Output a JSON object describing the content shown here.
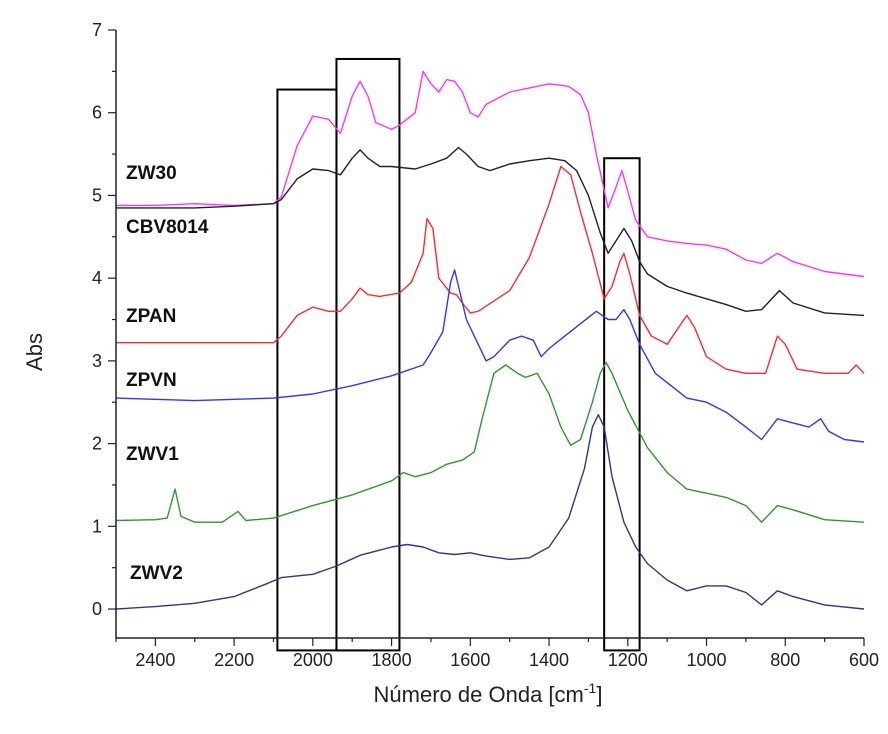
{
  "chart_data": {
    "type": "line",
    "xlabel": "Número de Onda [cm",
    "xlabel_superscript": "-1",
    "xlabel_suffix": "]",
    "ylabel": "Abs",
    "xlim": [
      2500,
      600
    ],
    "ylim": [
      -0.35,
      7
    ],
    "x_reversed": true,
    "x_ticks": [
      2400,
      2200,
      2000,
      1800,
      1600,
      1400,
      1200,
      1000,
      800,
      600
    ],
    "y_ticks": [
      0,
      1,
      2,
      3,
      4,
      5,
      6,
      7
    ],
    "x_tick_labels": [
      "2400",
      "2200",
      "2000",
      "1800",
      "1600",
      "1400",
      "1200",
      "1000",
      "800",
      "600"
    ],
    "y_tick_labels": [
      "0",
      "1",
      "2",
      "3",
      "4",
      "5",
      "6",
      "7"
    ],
    "grid": false,
    "legend": "none",
    "highlight_boxes": [
      {
        "x": [
          2090,
          1940
        ],
        "y": [
          -0.5,
          6.28
        ]
      },
      {
        "x": [
          1940,
          1780
        ],
        "y": [
          -0.5,
          6.65
        ]
      },
      {
        "x": [
          1260,
          1170
        ],
        "y": [
          -0.5,
          5.45
        ]
      }
    ],
    "series": [
      {
        "name": "ZW30",
        "color": "#ff33ff",
        "points": [
          [
            2500,
            4.88
          ],
          [
            2400,
            4.88
          ],
          [
            2300,
            4.9
          ],
          [
            2200,
            4.88
          ],
          [
            2100,
            4.9
          ],
          [
            2080,
            4.98
          ],
          [
            2040,
            5.6
          ],
          [
            2000,
            5.96
          ],
          [
            1960,
            5.92
          ],
          [
            1930,
            5.75
          ],
          [
            1900,
            6.2
          ],
          [
            1880,
            6.38
          ],
          [
            1860,
            6.2
          ],
          [
            1840,
            5.88
          ],
          [
            1800,
            5.8
          ],
          [
            1780,
            5.85
          ],
          [
            1740,
            6.0
          ],
          [
            1720,
            6.5
          ],
          [
            1700,
            6.35
          ],
          [
            1680,
            6.25
          ],
          [
            1660,
            6.4
          ],
          [
            1640,
            6.38
          ],
          [
            1620,
            6.25
          ],
          [
            1600,
            6.0
          ],
          [
            1580,
            5.95
          ],
          [
            1560,
            6.1
          ],
          [
            1500,
            6.25
          ],
          [
            1450,
            6.3
          ],
          [
            1400,
            6.35
          ],
          [
            1350,
            6.32
          ],
          [
            1320,
            6.22
          ],
          [
            1300,
            6.0
          ],
          [
            1280,
            5.5
          ],
          [
            1250,
            4.85
          ],
          [
            1230,
            5.1
          ],
          [
            1215,
            5.3
          ],
          [
            1200,
            5.05
          ],
          [
            1180,
            4.7
          ],
          [
            1150,
            4.5
          ],
          [
            1100,
            4.45
          ],
          [
            1050,
            4.42
          ],
          [
            1000,
            4.4
          ],
          [
            950,
            4.35
          ],
          [
            900,
            4.22
          ],
          [
            860,
            4.18
          ],
          [
            820,
            4.3
          ],
          [
            780,
            4.2
          ],
          [
            700,
            4.08
          ],
          [
            600,
            4.02
          ]
        ]
      },
      {
        "name": "CBV8014",
        "color": "#222222",
        "points": [
          [
            2500,
            4.85
          ],
          [
            2300,
            4.85
          ],
          [
            2200,
            4.87
          ],
          [
            2100,
            4.9
          ],
          [
            2080,
            4.95
          ],
          [
            2040,
            5.2
          ],
          [
            2000,
            5.32
          ],
          [
            1960,
            5.3
          ],
          [
            1930,
            5.25
          ],
          [
            1900,
            5.45
          ],
          [
            1880,
            5.55
          ],
          [
            1860,
            5.45
          ],
          [
            1830,
            5.35
          ],
          [
            1800,
            5.35
          ],
          [
            1740,
            5.32
          ],
          [
            1700,
            5.38
          ],
          [
            1660,
            5.45
          ],
          [
            1630,
            5.58
          ],
          [
            1610,
            5.5
          ],
          [
            1580,
            5.35
          ],
          [
            1550,
            5.3
          ],
          [
            1500,
            5.38
          ],
          [
            1450,
            5.42
          ],
          [
            1400,
            5.45
          ],
          [
            1360,
            5.42
          ],
          [
            1330,
            5.3
          ],
          [
            1300,
            5.0
          ],
          [
            1270,
            4.55
          ],
          [
            1250,
            4.3
          ],
          [
            1230,
            4.45
          ],
          [
            1210,
            4.6
          ],
          [
            1190,
            4.45
          ],
          [
            1170,
            4.2
          ],
          [
            1150,
            4.05
          ],
          [
            1100,
            3.9
          ],
          [
            1050,
            3.82
          ],
          [
            1000,
            3.75
          ],
          [
            950,
            3.68
          ],
          [
            900,
            3.6
          ],
          [
            860,
            3.62
          ],
          [
            815,
            3.85
          ],
          [
            780,
            3.7
          ],
          [
            700,
            3.58
          ],
          [
            600,
            3.55
          ]
        ]
      },
      {
        "name": "ZPAN",
        "color": "#ff2b2b",
        "points": [
          [
            2500,
            3.22
          ],
          [
            2300,
            3.22
          ],
          [
            2100,
            3.22
          ],
          [
            2080,
            3.3
          ],
          [
            2040,
            3.55
          ],
          [
            2000,
            3.65
          ],
          [
            1960,
            3.6
          ],
          [
            1930,
            3.6
          ],
          [
            1900,
            3.75
          ],
          [
            1880,
            3.88
          ],
          [
            1860,
            3.8
          ],
          [
            1830,
            3.78
          ],
          [
            1780,
            3.82
          ],
          [
            1750,
            3.95
          ],
          [
            1720,
            4.3
          ],
          [
            1710,
            4.72
          ],
          [
            1695,
            4.6
          ],
          [
            1680,
            4.0
          ],
          [
            1650,
            3.82
          ],
          [
            1635,
            3.8
          ],
          [
            1620,
            3.7
          ],
          [
            1600,
            3.58
          ],
          [
            1580,
            3.6
          ],
          [
            1500,
            3.85
          ],
          [
            1450,
            4.25
          ],
          [
            1400,
            4.9
          ],
          [
            1370,
            5.35
          ],
          [
            1345,
            5.25
          ],
          [
            1320,
            4.8
          ],
          [
            1290,
            4.3
          ],
          [
            1260,
            3.75
          ],
          [
            1240,
            3.9
          ],
          [
            1220,
            4.2
          ],
          [
            1210,
            4.3
          ],
          [
            1195,
            4.05
          ],
          [
            1170,
            3.55
          ],
          [
            1140,
            3.3
          ],
          [
            1100,
            3.2
          ],
          [
            1050,
            3.55
          ],
          [
            1030,
            3.4
          ],
          [
            1000,
            3.05
          ],
          [
            950,
            2.9
          ],
          [
            900,
            2.85
          ],
          [
            850,
            2.85
          ],
          [
            820,
            3.3
          ],
          [
            800,
            3.2
          ],
          [
            770,
            2.9
          ],
          [
            700,
            2.85
          ],
          [
            640,
            2.85
          ],
          [
            620,
            2.95
          ],
          [
            600,
            2.85
          ]
        ]
      },
      {
        "name": "ZPVN",
        "color": "#3333ff",
        "points": [
          [
            2500,
            2.55
          ],
          [
            2300,
            2.52
          ],
          [
            2100,
            2.55
          ],
          [
            2000,
            2.6
          ],
          [
            1900,
            2.7
          ],
          [
            1800,
            2.82
          ],
          [
            1720,
            2.95
          ],
          [
            1700,
            3.1
          ],
          [
            1670,
            3.35
          ],
          [
            1650,
            3.95
          ],
          [
            1640,
            4.1
          ],
          [
            1630,
            3.9
          ],
          [
            1610,
            3.5
          ],
          [
            1580,
            3.2
          ],
          [
            1560,
            3.0
          ],
          [
            1540,
            3.05
          ],
          [
            1500,
            3.25
          ],
          [
            1470,
            3.3
          ],
          [
            1440,
            3.25
          ],
          [
            1420,
            3.05
          ],
          [
            1400,
            3.15
          ],
          [
            1360,
            3.3
          ],
          [
            1320,
            3.45
          ],
          [
            1280,
            3.6
          ],
          [
            1250,
            3.5
          ],
          [
            1230,
            3.5
          ],
          [
            1210,
            3.62
          ],
          [
            1195,
            3.5
          ],
          [
            1170,
            3.2
          ],
          [
            1130,
            2.85
          ],
          [
            1090,
            2.7
          ],
          [
            1050,
            2.55
          ],
          [
            1000,
            2.5
          ],
          [
            950,
            2.38
          ],
          [
            900,
            2.2
          ],
          [
            860,
            2.05
          ],
          [
            820,
            2.3
          ],
          [
            780,
            2.25
          ],
          [
            740,
            2.2
          ],
          [
            710,
            2.3
          ],
          [
            690,
            2.15
          ],
          [
            650,
            2.05
          ],
          [
            600,
            2.02
          ]
        ]
      },
      {
        "name": "ZWV1",
        "color": "#2b9a2b",
        "points": [
          [
            2500,
            1.07
          ],
          [
            2400,
            1.08
          ],
          [
            2370,
            1.1
          ],
          [
            2350,
            1.45
          ],
          [
            2335,
            1.12
          ],
          [
            2300,
            1.05
          ],
          [
            2230,
            1.05
          ],
          [
            2190,
            1.18
          ],
          [
            2170,
            1.07
          ],
          [
            2100,
            1.1
          ],
          [
            2000,
            1.25
          ],
          [
            1900,
            1.38
          ],
          [
            1800,
            1.55
          ],
          [
            1770,
            1.65
          ],
          [
            1740,
            1.6
          ],
          [
            1700,
            1.65
          ],
          [
            1660,
            1.75
          ],
          [
            1620,
            1.8
          ],
          [
            1590,
            1.9
          ],
          [
            1570,
            2.3
          ],
          [
            1540,
            2.85
          ],
          [
            1510,
            2.95
          ],
          [
            1480,
            2.85
          ],
          [
            1460,
            2.8
          ],
          [
            1430,
            2.85
          ],
          [
            1400,
            2.6
          ],
          [
            1370,
            2.2
          ],
          [
            1345,
            1.98
          ],
          [
            1320,
            2.05
          ],
          [
            1290,
            2.5
          ],
          [
            1270,
            2.85
          ],
          [
            1255,
            2.98
          ],
          [
            1240,
            2.85
          ],
          [
            1200,
            2.4
          ],
          [
            1150,
            1.95
          ],
          [
            1100,
            1.65
          ],
          [
            1050,
            1.45
          ],
          [
            1000,
            1.4
          ],
          [
            950,
            1.35
          ],
          [
            900,
            1.25
          ],
          [
            860,
            1.05
          ],
          [
            820,
            1.25
          ],
          [
            780,
            1.2
          ],
          [
            700,
            1.08
          ],
          [
            600,
            1.05
          ]
        ]
      },
      {
        "name": "ZWV2",
        "color": "#33338f",
        "points": [
          [
            2500,
            0.0
          ],
          [
            2400,
            0.03
          ],
          [
            2300,
            0.07
          ],
          [
            2200,
            0.15
          ],
          [
            2120,
            0.3
          ],
          [
            2080,
            0.38
          ],
          [
            2000,
            0.42
          ],
          [
            1940,
            0.52
          ],
          [
            1880,
            0.65
          ],
          [
            1800,
            0.75
          ],
          [
            1760,
            0.78
          ],
          [
            1720,
            0.75
          ],
          [
            1680,
            0.68
          ],
          [
            1640,
            0.66
          ],
          [
            1600,
            0.68
          ],
          [
            1560,
            0.64
          ],
          [
            1500,
            0.6
          ],
          [
            1450,
            0.62
          ],
          [
            1400,
            0.75
          ],
          [
            1350,
            1.1
          ],
          [
            1310,
            1.7
          ],
          [
            1290,
            2.2
          ],
          [
            1275,
            2.35
          ],
          [
            1260,
            2.2
          ],
          [
            1240,
            1.6
          ],
          [
            1210,
            1.05
          ],
          [
            1180,
            0.75
          ],
          [
            1150,
            0.55
          ],
          [
            1100,
            0.35
          ],
          [
            1050,
            0.22
          ],
          [
            1000,
            0.28
          ],
          [
            950,
            0.28
          ],
          [
            900,
            0.2
          ],
          [
            860,
            0.05
          ],
          [
            820,
            0.22
          ],
          [
            780,
            0.15
          ],
          [
            700,
            0.05
          ],
          [
            600,
            0.0
          ]
        ]
      }
    ],
    "series_labels": [
      "ZW30",
      "CBV8014",
      "ZPAN",
      "ZPVN",
      "ZWV1",
      "ZWV2"
    ]
  }
}
